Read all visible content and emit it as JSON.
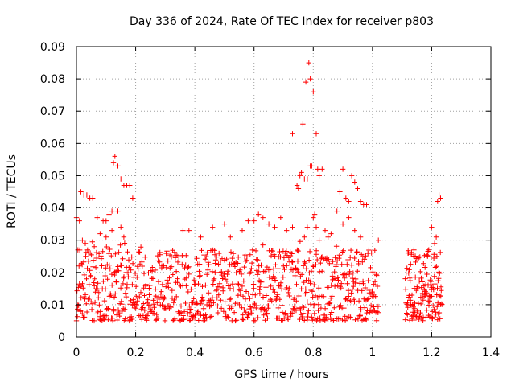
{
  "chart_data": {
    "type": "scatter",
    "title": "Day 336 of 2024, Rate Of TEC Index for receiver p803",
    "xlabel": "GPS time / hours",
    "ylabel": "ROTI / TECUs",
    "xlim": [
      0,
      1.4
    ],
    "ylim": [
      0,
      0.09
    ],
    "x_ticks": [
      0,
      0.2,
      0.4,
      0.6,
      0.8,
      1,
      1.2,
      1.4
    ],
    "x_tick_labels": [
      "0",
      "0.2",
      "0.4",
      "0.6",
      "0.8",
      "1",
      "1.2",
      "1.4"
    ],
    "y_ticks": [
      0,
      0.01,
      0.02,
      0.03,
      0.04,
      0.05,
      0.06,
      0.07,
      0.08,
      0.09
    ],
    "y_tick_labels": [
      "0",
      "0.01",
      "0.02",
      "0.03",
      "0.04",
      "0.05",
      "0.06",
      "0.07",
      "0.08",
      "0.09"
    ],
    "grid": true,
    "marker": "+",
    "color": "#ff0000",
    "series": [
      {
        "name": "ROTI",
        "points": [
          [
            0.0,
            0.037
          ],
          [
            0.005,
            0.027
          ],
          [
            0.01,
            0.036
          ],
          [
            0.015,
            0.045
          ],
          [
            0.025,
            0.044
          ],
          [
            0.035,
            0.044
          ],
          [
            0.045,
            0.043
          ],
          [
            0.055,
            0.043
          ],
          [
            0.07,
            0.037
          ],
          [
            0.09,
            0.036
          ],
          [
            0.1,
            0.036
          ],
          [
            0.11,
            0.038
          ],
          [
            0.12,
            0.039
          ],
          [
            0.125,
            0.054
          ],
          [
            0.13,
            0.056
          ],
          [
            0.14,
            0.053
          ],
          [
            0.15,
            0.049
          ],
          [
            0.16,
            0.047
          ],
          [
            0.17,
            0.047
          ],
          [
            0.18,
            0.047
          ],
          [
            0.19,
            0.043
          ],
          [
            0.14,
            0.039
          ],
          [
            0.15,
            0.034
          ],
          [
            0.16,
            0.031
          ],
          [
            0.1,
            0.031
          ],
          [
            0.08,
            0.032
          ],
          [
            0.02,
            0.03
          ],
          [
            0.03,
            0.029
          ],
          [
            0.06,
            0.028
          ],
          [
            0.12,
            0.033
          ],
          [
            0.36,
            0.033
          ],
          [
            0.38,
            0.033
          ],
          [
            0.42,
            0.031
          ],
          [
            0.46,
            0.034
          ],
          [
            0.5,
            0.035
          ],
          [
            0.52,
            0.031
          ],
          [
            0.56,
            0.033
          ],
          [
            0.58,
            0.036
          ],
          [
            0.6,
            0.036
          ],
          [
            0.615,
            0.038
          ],
          [
            0.63,
            0.037
          ],
          [
            0.65,
            0.035
          ],
          [
            0.67,
            0.034
          ],
          [
            0.69,
            0.037
          ],
          [
            0.71,
            0.033
          ],
          [
            0.73,
            0.034
          ],
          [
            0.73,
            0.063
          ],
          [
            0.745,
            0.047
          ],
          [
            0.75,
            0.046
          ],
          [
            0.755,
            0.05
          ],
          [
            0.76,
            0.051
          ],
          [
            0.765,
            0.066
          ],
          [
            0.77,
            0.049
          ],
          [
            0.775,
            0.079
          ],
          [
            0.78,
            0.049
          ],
          [
            0.785,
            0.085
          ],
          [
            0.79,
            0.053
          ],
          [
            0.795,
            0.053
          ],
          [
            0.8,
            0.076
          ],
          [
            0.805,
            0.038
          ],
          [
            0.81,
            0.063
          ],
          [
            0.815,
            0.052
          ],
          [
            0.82,
            0.05
          ],
          [
            0.83,
            0.052
          ],
          [
            0.79,
            0.08
          ],
          [
            0.8,
            0.037
          ],
          [
            0.81,
            0.034
          ],
          [
            0.78,
            0.034
          ],
          [
            0.77,
            0.031
          ],
          [
            0.82,
            0.03
          ],
          [
            0.84,
            0.033
          ],
          [
            0.85,
            0.031
          ],
          [
            0.86,
            0.032
          ],
          [
            0.88,
            0.039
          ],
          [
            0.89,
            0.045
          ],
          [
            0.9,
            0.052
          ],
          [
            0.91,
            0.043
          ],
          [
            0.92,
            0.042
          ],
          [
            0.93,
            0.05
          ],
          [
            0.94,
            0.048
          ],
          [
            0.95,
            0.046
          ],
          [
            0.96,
            0.042
          ],
          [
            0.97,
            0.041
          ],
          [
            0.98,
            0.041
          ],
          [
            0.92,
            0.037
          ],
          [
            0.9,
            0.035
          ],
          [
            0.94,
            0.033
          ],
          [
            0.96,
            0.031
          ],
          [
            1.02,
            0.03
          ],
          [
            1.2,
            0.034
          ],
          [
            1.22,
            0.042
          ],
          [
            1.225,
            0.044
          ],
          [
            1.23,
            0.043
          ],
          [
            1.21,
            0.029
          ],
          [
            1.19,
            0.027
          ],
          [
            1.14,
            0.027
          ],
          [
            1.12,
            0.026
          ]
        ]
      }
    ]
  }
}
